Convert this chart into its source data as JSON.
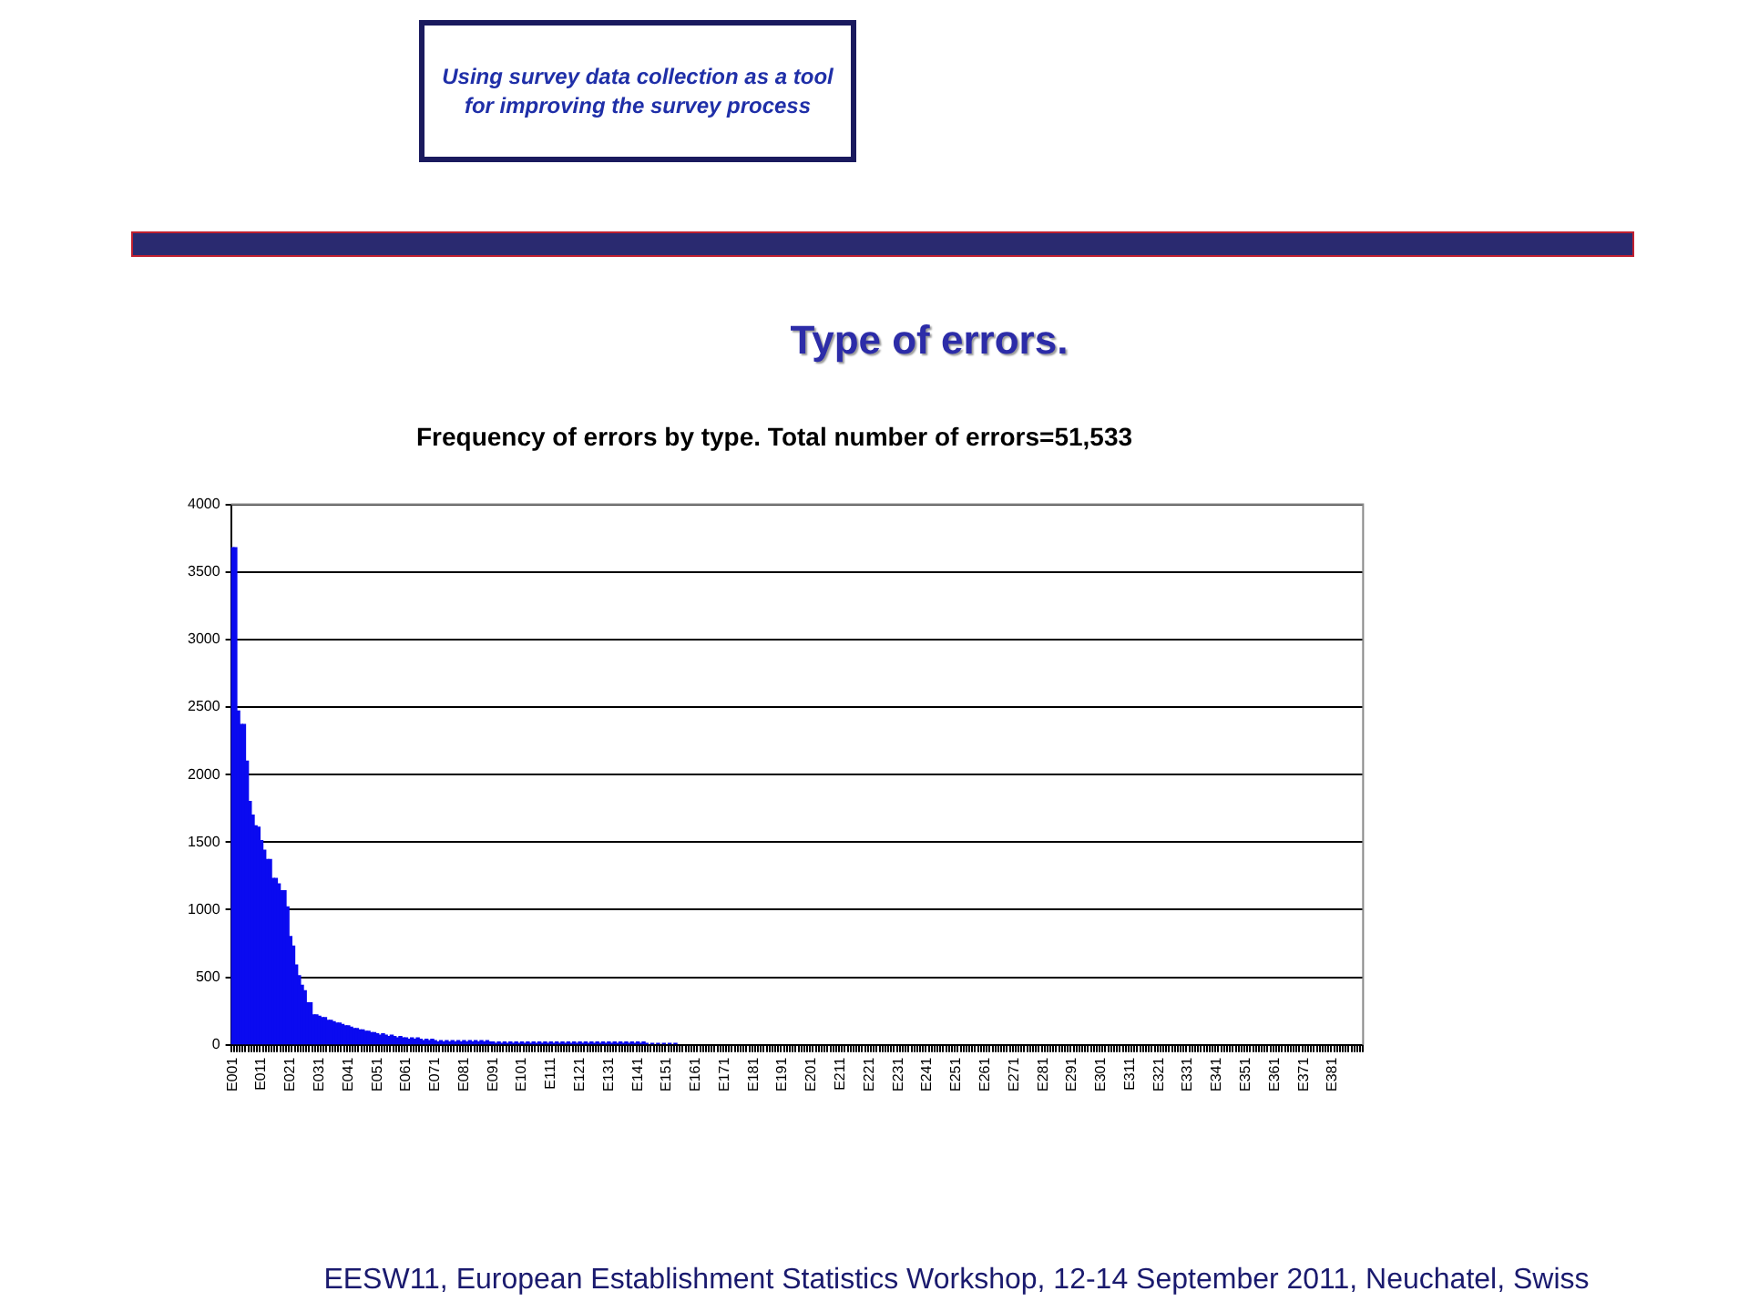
{
  "chart_data": {
    "type": "bar",
    "title": "Type of errors.",
    "subtitle": "Frequency of errors by type. Total number of errors=51,533",
    "annotations": [
      "Using survey data collection as a tool for improving the survey process",
      "EESW11, European Establishment Statistics Workshop, 12-14 September 2011, Neuchatel, Swiss"
    ],
    "categories": [
      "E001",
      null,
      null,
      null,
      null,
      null,
      null,
      null,
      null,
      null,
      "E011",
      null,
      null,
      null,
      null,
      null,
      null,
      null,
      null,
      null,
      "E021",
      null,
      null,
      null,
      null,
      null,
      null,
      null,
      null,
      null,
      "E031",
      null,
      null,
      null,
      null,
      null,
      null,
      null,
      null,
      null,
      "E041",
      null,
      null,
      null,
      null,
      null,
      null,
      null,
      null,
      null,
      "E051",
      null,
      null,
      null,
      null,
      null,
      null,
      null,
      null,
      null,
      "E061",
      null,
      null,
      null,
      null,
      null,
      null,
      null,
      null,
      null,
      "E071",
      null,
      null,
      null,
      null,
      null,
      null,
      null,
      null,
      null,
      "E081",
      null,
      null,
      null,
      null,
      null,
      null,
      null,
      null,
      null,
      "E091",
      null,
      null,
      null,
      null,
      null,
      null,
      null,
      null,
      null,
      "E101",
      null,
      null,
      null,
      null,
      null,
      null,
      null,
      null,
      null,
      "E111",
      null,
      null,
      null,
      null,
      null,
      null,
      null,
      null,
      null,
      "E121",
      null,
      null,
      null,
      null,
      null,
      null,
      null,
      null,
      null,
      "E131",
      null,
      null,
      null,
      null,
      null,
      null,
      null,
      null,
      null,
      "E141",
      null,
      null,
      null,
      null,
      null,
      null,
      null,
      null,
      null,
      "E151",
      null,
      null,
      null,
      null,
      null,
      null,
      null,
      null,
      null,
      "E161",
      null,
      null,
      null,
      null,
      null,
      null,
      null,
      null,
      null,
      "E171",
      null,
      null,
      null,
      null,
      null,
      null,
      null,
      null,
      null,
      "E181",
      null,
      null,
      null,
      null,
      null,
      null,
      null,
      null,
      null,
      "E191",
      null,
      null,
      null,
      null,
      null,
      null,
      null,
      null,
      null,
      "E201",
      null,
      null,
      null,
      null,
      null,
      null,
      null,
      null,
      null,
      "E211",
      null,
      null,
      null,
      null,
      null,
      null,
      null,
      null,
      null,
      "E221",
      null,
      null,
      null,
      null,
      null,
      null,
      null,
      null,
      null,
      "E231",
      null,
      null,
      null,
      null,
      null,
      null,
      null,
      null,
      null,
      "E241",
      null,
      null,
      null,
      null,
      null,
      null,
      null,
      null,
      null,
      "E251",
      null,
      null,
      null,
      null,
      null,
      null,
      null,
      null,
      null,
      "E261",
      null,
      null,
      null,
      null,
      null,
      null,
      null,
      null,
      null,
      "E271",
      null,
      null,
      null,
      null,
      null,
      null,
      null,
      null,
      null,
      "E281",
      null,
      null,
      null,
      null,
      null,
      null,
      null,
      null,
      null,
      "E291",
      null,
      null,
      null,
      null,
      null,
      null,
      null,
      null,
      null,
      "E301",
      null,
      null,
      null,
      null,
      null,
      null,
      null,
      null,
      null,
      "E311",
      null,
      null,
      null,
      null,
      null,
      null,
      null,
      null,
      null,
      "E321",
      null,
      null,
      null,
      null,
      null,
      null,
      null,
      null,
      null,
      "E331",
      null,
      null,
      null,
      null,
      null,
      null,
      null,
      null,
      null,
      "E341",
      null,
      null,
      null,
      null,
      null,
      null,
      null,
      null,
      null,
      "E351",
      null,
      null,
      null,
      null,
      null,
      null,
      null,
      null,
      null,
      "E361",
      null,
      null,
      null,
      null,
      null,
      null,
      null,
      null,
      null,
      "E371",
      null,
      null,
      null,
      null,
      null,
      null,
      null,
      null,
      null,
      "E381",
      null,
      null,
      null,
      null,
      null,
      null,
      null,
      null,
      null,
      null
    ],
    "values": [
      3680,
      3680,
      2470,
      2370,
      2370,
      2100,
      1800,
      1700,
      1620,
      1610,
      1510,
      1440,
      1370,
      1370,
      1230,
      1230,
      1190,
      1140,
      1140,
      1020,
      800,
      730,
      590,
      510,
      440,
      400,
      310,
      310,
      220,
      220,
      210,
      200,
      200,
      180,
      180,
      170,
      160,
      160,
      150,
      140,
      140,
      130,
      120,
      120,
      110,
      110,
      100,
      100,
      90,
      90,
      80,
      70,
      80,
      70,
      60,
      70,
      60,
      50,
      60,
      50,
      50,
      40,
      50,
      40,
      50,
      40,
      30,
      40,
      30,
      40,
      30,
      20,
      30,
      20,
      30,
      20,
      30,
      20,
      30,
      20,
      30,
      20,
      30,
      20,
      30,
      20,
      30,
      20,
      30,
      20,
      20,
      10,
      20,
      10,
      20,
      10,
      20,
      10,
      20,
      10,
      20,
      10,
      20,
      10,
      20,
      10,
      20,
      10,
      20,
      10,
      20,
      10,
      20,
      10,
      20,
      10,
      20,
      10,
      20,
      10,
      20,
      10,
      20,
      10,
      20,
      10,
      20,
      10,
      20,
      10,
      20,
      10,
      20,
      10,
      20,
      10,
      20,
      10,
      20,
      10,
      20,
      10,
      20,
      10,
      0,
      10,
      0,
      10,
      0,
      10,
      0,
      10,
      0,
      10,
      0,
      0,
      0,
      0,
      0,
      0,
      0,
      0,
      0,
      0,
      0,
      0,
      0,
      0,
      0,
      0,
      0,
      0,
      0,
      0,
      0,
      0,
      0,
      0,
      0,
      0,
      0,
      0,
      0,
      0,
      0,
      0,
      0,
      0,
      0,
      0,
      0,
      0,
      0,
      0,
      0,
      0,
      0,
      0,
      0,
      0,
      0,
      0,
      0,
      0,
      0,
      0,
      0,
      0,
      0,
      0,
      0,
      0,
      0,
      0,
      0,
      0,
      0,
      0,
      0,
      0,
      0,
      0,
      0,
      0,
      0,
      0,
      0,
      0,
      0,
      0,
      0,
      0,
      0,
      0,
      0,
      0,
      0,
      0,
      0,
      0,
      0,
      0,
      0,
      0,
      0,
      0,
      0,
      0,
      0,
      0,
      0,
      0,
      0,
      0,
      0,
      0,
      0,
      0,
      0,
      0,
      0,
      0,
      0,
      0,
      0,
      0,
      0,
      0,
      0,
      0,
      0,
      0,
      0,
      0,
      0,
      0,
      0,
      0,
      0,
      0,
      0,
      0,
      0,
      0,
      0,
      0,
      0,
      0,
      0,
      0,
      0,
      0,
      0,
      0,
      0,
      0,
      0,
      0,
      0,
      0,
      0,
      0,
      0,
      0,
      0,
      0,
      0,
      0,
      0,
      0,
      0,
      0,
      0,
      0,
      0,
      0,
      0,
      0,
      0,
      0,
      0,
      0,
      0,
      0,
      0,
      0,
      0,
      0,
      0,
      0,
      0,
      0,
      0,
      0,
      0,
      0,
      0,
      0,
      0,
      0,
      0,
      0,
      0,
      0,
      0,
      0,
      0,
      0,
      0,
      0,
      0,
      0,
      0,
      0,
      0,
      0,
      0,
      0,
      0,
      0,
      0,
      0,
      0,
      0,
      0,
      0,
      0,
      0,
      0,
      0,
      0,
      0,
      0,
      0,
      0,
      0,
      0,
      0,
      0,
      0,
      0,
      0,
      0,
      0,
      0,
      0,
      0,
      0,
      0,
      0,
      0
    ],
    "color": "#0a0af0",
    "ylim": [
      0,
      4000
    ],
    "yticks": [
      0,
      500,
      1000,
      1500,
      2000,
      2500,
      3000,
      3500,
      4000
    ],
    "grid": "y"
  }
}
